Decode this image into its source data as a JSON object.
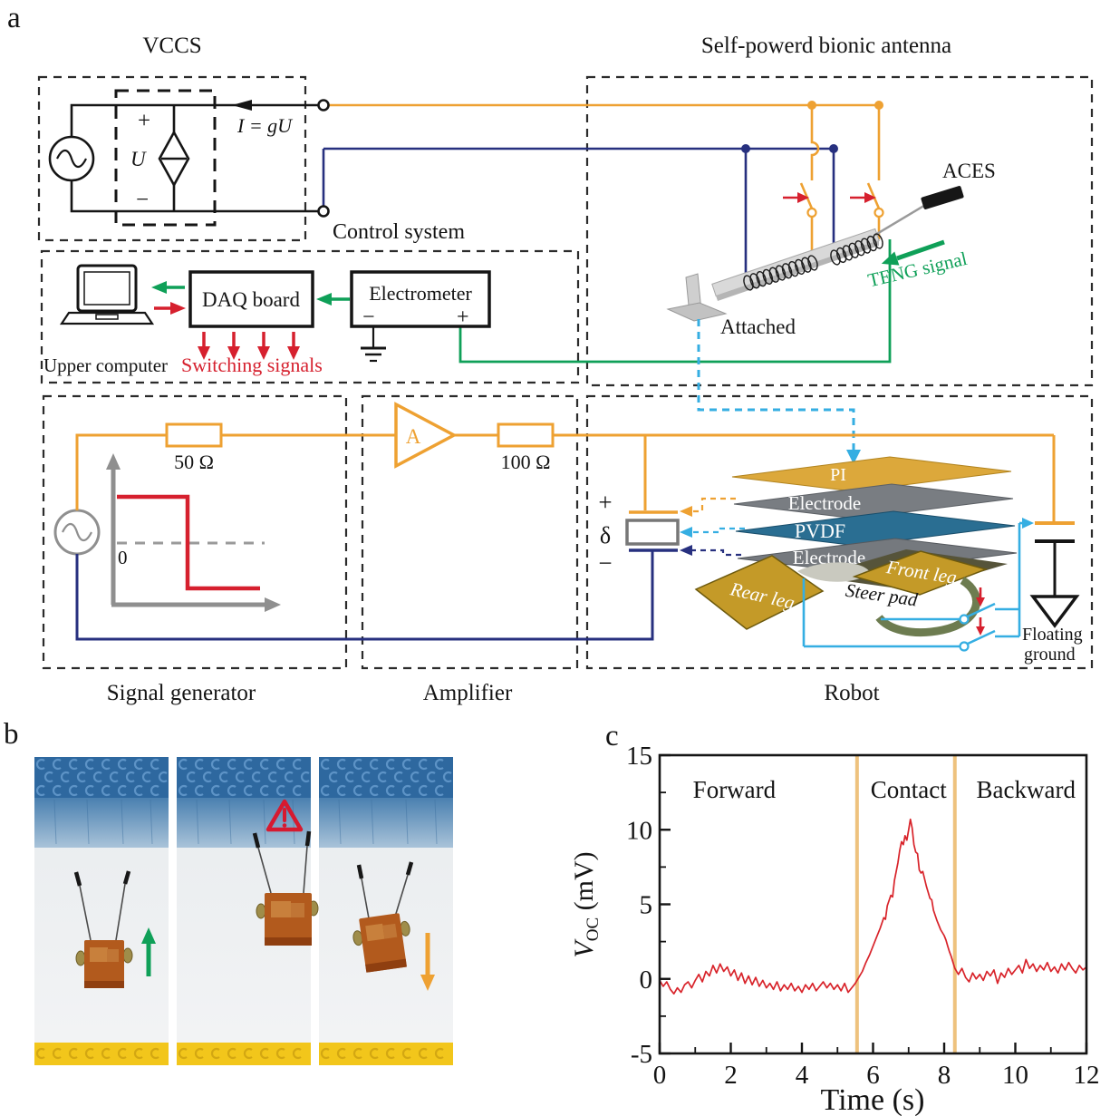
{
  "colors": {
    "orange": "#EEA132",
    "navy": "#27307F",
    "green": "#0FA058",
    "cyan": "#35AEE2",
    "red": "#D6202E",
    "curve_red": "#D8232A",
    "vline_orange": "#EEC27E",
    "gold_leg": "#C49A28",
    "pi_gold": "#DCA83B",
    "pvdf_blue": "#2A6E92",
    "electrode_gray": "#7C8084",
    "lego_blue_dark": "#2E689F",
    "lego_blue_mid": "#4A80B0",
    "lego_yellow": "#F2C61B",
    "robot_orange": "#B25A1D"
  },
  "figure": {
    "a": "a",
    "b": "b",
    "c": "c"
  },
  "vccs": {
    "title": "VCCS",
    "plus": "+",
    "u": "U",
    "minus": "−",
    "current": "I = gU"
  },
  "control": {
    "title": "Control system",
    "upper_computer": "Upper computer",
    "daq": "DAQ board",
    "electrometer": "Electrometer",
    "em_minus": "−",
    "em_plus": "+",
    "switching": "Switching signals"
  },
  "antenna": {
    "title": "Self-powerd bionic antenna",
    "aces": "ACES",
    "teng": "TENG signal",
    "attached": "Attached"
  },
  "signal_generator": {
    "title": "Signal generator",
    "r50": "50 Ω",
    "zero": "0"
  },
  "amplifier": {
    "title": "Amplifier",
    "gain": "A",
    "r100": "100 Ω"
  },
  "robot": {
    "title": "Robot",
    "plus": "+",
    "delta": "δ",
    "minus": "−",
    "layer_pi": "PI",
    "layer_electrode_top": "Electrode",
    "layer_pvdf": "PVDF",
    "layer_electrode_bottom": "Electrode",
    "rear_leg": "Rear leg",
    "front_leg": "Front leg",
    "steer_pad": "Steer pad",
    "floating_line1": "Floating",
    "floating_line2": "ground"
  },
  "panel_b": {
    "markers": [
      "green-up-arrow",
      "warning",
      "orange-down-arrow"
    ]
  },
  "chart_data": {
    "type": "line",
    "xlabel": "Time (s)",
    "ylabel_main": "V",
    "ylabel_sub": "OC",
    "ylabel_unit": " (mV)",
    "xlim": [
      0,
      12
    ],
    "ylim": [
      -5,
      15
    ],
    "xticks": [
      0,
      2,
      4,
      6,
      8,
      10,
      12
    ],
    "xminor": [
      1,
      3,
      5,
      7,
      9,
      11
    ],
    "yticks": [
      -5,
      0,
      5,
      10,
      15
    ],
    "yminor": [
      -2.5,
      2.5,
      7.5,
      12.5
    ],
    "grid": false,
    "vlines_s": [
      5.55,
      8.3
    ],
    "regions": [
      {
        "label": "Forward",
        "t_center": 2.1
      },
      {
        "label": "Contact",
        "t_center": 7.0
      },
      {
        "label": "Backward",
        "t_center": 10.3
      }
    ],
    "series": [
      {
        "name": "Voc",
        "points": [
          [
            0,
            -0.1
          ],
          [
            0.1,
            -0.5
          ],
          [
            0.2,
            -0.2
          ],
          [
            0.3,
            -0.7
          ],
          [
            0.4,
            -1
          ],
          [
            0.5,
            -0.6
          ],
          [
            0.6,
            -0.9
          ],
          [
            0.7,
            -0.4
          ],
          [
            0.8,
            -0.2
          ],
          [
            0.9,
            -0.6
          ],
          [
            1,
            -0.1
          ],
          [
            1.1,
            0.3
          ],
          [
            1.2,
            -0.2
          ],
          [
            1.3,
            0.5
          ],
          [
            1.4,
            0.2
          ],
          [
            1.5,
            0.9
          ],
          [
            1.6,
            0.4
          ],
          [
            1.7,
            1
          ],
          [
            1.8,
            0.5
          ],
          [
            1.9,
            0.8
          ],
          [
            2,
            0.2
          ],
          [
            2.1,
            0.6
          ],
          [
            2.2,
            -0.1
          ],
          [
            2.3,
            0.4
          ],
          [
            2.4,
            -0.3
          ],
          [
            2.5,
            0.2
          ],
          [
            2.6,
            -0.4
          ],
          [
            2.7,
            0.1
          ],
          [
            2.8,
            -0.5
          ],
          [
            2.9,
            -0.1
          ],
          [
            3,
            -0.6
          ],
          [
            3.1,
            -0.3
          ],
          [
            3.2,
            -0.7
          ],
          [
            3.3,
            -0.2
          ],
          [
            3.4,
            -0.8
          ],
          [
            3.5,
            -0.4
          ],
          [
            3.6,
            -0.7
          ],
          [
            3.7,
            -0.3
          ],
          [
            3.8,
            -0.8
          ],
          [
            3.9,
            -0.5
          ],
          [
            4,
            -0.9
          ],
          [
            4.1,
            -0.4
          ],
          [
            4.2,
            -0.7
          ],
          [
            4.3,
            -0.3
          ],
          [
            4.4,
            -0.8
          ],
          [
            4.5,
            -0.5
          ],
          [
            4.6,
            -0.2
          ],
          [
            4.7,
            -0.6
          ],
          [
            4.8,
            -0.3
          ],
          [
            4.9,
            -0.7
          ],
          [
            5,
            -0.4
          ],
          [
            5.1,
            -0.8
          ],
          [
            5.2,
            -0.3
          ],
          [
            5.3,
            -0.9
          ],
          [
            5.4,
            -0.6
          ],
          [
            5.5,
            -0.3
          ],
          [
            5.6,
            0.1
          ],
          [
            5.7,
            0.5
          ],
          [
            5.8,
            1.1
          ],
          [
            5.9,
            1.6
          ],
          [
            6,
            2.2
          ],
          [
            6.1,
            2.8
          ],
          [
            6.2,
            3.4
          ],
          [
            6.3,
            4.1
          ],
          [
            6.35,
            4
          ],
          [
            6.4,
            4.9
          ],
          [
            6.5,
            5.6
          ],
          [
            6.55,
            5.5
          ],
          [
            6.6,
            6.6
          ],
          [
            6.7,
            7.8
          ],
          [
            6.75,
            8.6
          ],
          [
            6.8,
            9.2
          ],
          [
            6.85,
            9
          ],
          [
            6.9,
            9.6
          ],
          [
            6.95,
            9.3
          ],
          [
            7,
            10
          ],
          [
            7.05,
            10.7
          ],
          [
            7.1,
            10.1
          ],
          [
            7.15,
            9
          ],
          [
            7.2,
            8.5
          ],
          [
            7.25,
            8.4
          ],
          [
            7.3,
            7.3
          ],
          [
            7.35,
            7.1
          ],
          [
            7.4,
            7.2
          ],
          [
            7.5,
            6.2
          ],
          [
            7.6,
            5.4
          ],
          [
            7.65,
            5.3
          ],
          [
            7.7,
            4.6
          ],
          [
            7.8,
            3.9
          ],
          [
            7.85,
            3.6
          ],
          [
            7.9,
            3.3
          ],
          [
            8,
            2.9
          ],
          [
            8.05,
            2.6
          ],
          [
            8.1,
            2.2
          ],
          [
            8.15,
            1.8
          ],
          [
            8.2,
            1.5
          ],
          [
            8.25,
            1.1
          ],
          [
            8.3,
            0.7
          ],
          [
            8.4,
            0.3
          ],
          [
            8.5,
            0.7
          ],
          [
            8.6,
            0.1
          ],
          [
            8.7,
            -0.2
          ],
          [
            8.8,
            0.4
          ],
          [
            8.9,
            0
          ],
          [
            9,
            0.3
          ],
          [
            9.1,
            -0.1
          ],
          [
            9.2,
            0.5
          ],
          [
            9.3,
            0.2
          ],
          [
            9.4,
            0.6
          ],
          [
            9.5,
            -0.3
          ],
          [
            9.6,
            0.4
          ],
          [
            9.7,
            0.1
          ],
          [
            9.8,
            0.7
          ],
          [
            9.9,
            0.3
          ],
          [
            10,
            0.6
          ],
          [
            10.1,
            0.9
          ],
          [
            10.2,
            0.4
          ],
          [
            10.3,
            1.3
          ],
          [
            10.4,
            0.7
          ],
          [
            10.5,
            1
          ],
          [
            10.6,
            0.5
          ],
          [
            10.7,
            0.9
          ],
          [
            10.8,
            0.6
          ],
          [
            10.9,
            1.1
          ],
          [
            11,
            0.5
          ],
          [
            11.1,
            0.8
          ],
          [
            11.2,
            0.4
          ],
          [
            11.3,
            1
          ],
          [
            11.4,
            0.6
          ],
          [
            11.5,
            1.1
          ],
          [
            11.6,
            0.7
          ],
          [
            11.7,
            0.4
          ],
          [
            11.8,
            0.9
          ],
          [
            11.9,
            0.6
          ],
          [
            12,
            0.8
          ]
        ]
      }
    ]
  }
}
